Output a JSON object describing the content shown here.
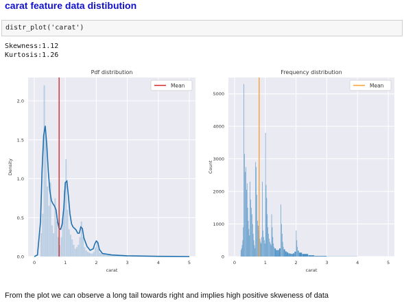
{
  "heading": "carat feature data distibution",
  "code": "distr_plot('carat')",
  "output": {
    "skewness": "Skewness:1.12",
    "kurtosis": "Kurtosis:1.26"
  },
  "conclusion": "From the plot we can observe a long tail towards right and implies high positive skweness of data",
  "chart_data": [
    {
      "type": "bar",
      "title": "Pdf distribution",
      "xlabel": "carat",
      "ylabel": "Density",
      "xlim": [
        -0.2,
        5.2
      ],
      "ylim": [
        0,
        2.3
      ],
      "xticks": [
        "0",
        "1",
        "2",
        "3",
        "4",
        "5"
      ],
      "yticks": [
        "0.0",
        "0.5",
        "1.0",
        "1.5",
        "2.0"
      ],
      "grid": true,
      "legend": "top-right",
      "legend_entries": [
        "Mean"
      ],
      "mean": 0.8,
      "mean_color": "#d62728",
      "bar_color": "#a8c4de",
      "kde_color": "#1f6fad",
      "bins": [
        [
          0.2,
          0.25,
          0.3
        ],
        [
          0.25,
          0.3,
          0.55
        ],
        [
          0.3,
          0.35,
          2.2
        ],
        [
          0.35,
          0.4,
          1.55
        ],
        [
          0.4,
          0.45,
          0.9
        ],
        [
          0.45,
          0.5,
          0.65
        ],
        [
          0.5,
          0.55,
          0.95
        ],
        [
          0.55,
          0.6,
          0.4
        ],
        [
          0.6,
          0.65,
          0.3
        ],
        [
          0.65,
          0.7,
          0.75
        ],
        [
          0.7,
          0.75,
          0.45
        ],
        [
          0.75,
          0.8,
          0.25
        ],
        [
          0.8,
          0.85,
          0.15
        ],
        [
          0.85,
          0.9,
          0.25
        ],
        [
          0.9,
          0.95,
          0.5
        ],
        [
          0.95,
          1.0,
          0.85
        ],
        [
          1.0,
          1.05,
          1.25
        ],
        [
          1.05,
          1.1,
          0.6
        ],
        [
          1.1,
          1.15,
          0.35
        ],
        [
          1.15,
          1.2,
          0.28
        ],
        [
          1.2,
          1.25,
          0.22
        ],
        [
          1.25,
          1.3,
          0.15
        ],
        [
          1.3,
          1.35,
          0.1
        ],
        [
          1.35,
          1.4,
          0.12
        ],
        [
          1.4,
          1.45,
          0.15
        ],
        [
          1.45,
          1.5,
          0.25
        ],
        [
          1.5,
          1.55,
          0.45
        ],
        [
          1.55,
          1.6,
          0.25
        ],
        [
          1.6,
          1.65,
          0.12
        ],
        [
          1.65,
          1.7,
          0.08
        ],
        [
          1.7,
          1.75,
          0.06
        ],
        [
          1.75,
          1.8,
          0.05
        ],
        [
          1.8,
          1.85,
          0.04
        ],
        [
          1.85,
          1.9,
          0.04
        ],
        [
          1.9,
          1.95,
          0.06
        ],
        [
          1.95,
          2.0,
          0.12
        ],
        [
          2.0,
          2.05,
          0.2
        ],
        [
          2.05,
          2.1,
          0.1
        ],
        [
          2.1,
          2.15,
          0.05
        ],
        [
          2.15,
          2.2,
          0.04
        ],
        [
          2.2,
          2.3,
          0.03
        ],
        [
          2.3,
          2.5,
          0.02
        ],
        [
          2.5,
          3.0,
          0.01
        ]
      ],
      "kde": [
        [
          0.0,
          0.0
        ],
        [
          0.1,
          0.02
        ],
        [
          0.2,
          0.45
        ],
        [
          0.25,
          1.1
        ],
        [
          0.3,
          1.55
        ],
        [
          0.35,
          1.68
        ],
        [
          0.4,
          1.45
        ],
        [
          0.45,
          1.1
        ],
        [
          0.5,
          0.85
        ],
        [
          0.55,
          0.72
        ],
        [
          0.6,
          0.68
        ],
        [
          0.65,
          0.65
        ],
        [
          0.7,
          0.6
        ],
        [
          0.75,
          0.45
        ],
        [
          0.8,
          0.36
        ],
        [
          0.85,
          0.35
        ],
        [
          0.9,
          0.42
        ],
        [
          0.95,
          0.62
        ],
        [
          1.0,
          0.95
        ],
        [
          1.05,
          0.97
        ],
        [
          1.1,
          0.78
        ],
        [
          1.15,
          0.55
        ],
        [
          1.2,
          0.42
        ],
        [
          1.25,
          0.38
        ],
        [
          1.3,
          0.36
        ],
        [
          1.35,
          0.34
        ],
        [
          1.4,
          0.3
        ],
        [
          1.45,
          0.3
        ],
        [
          1.5,
          0.38
        ],
        [
          1.55,
          0.36
        ],
        [
          1.6,
          0.24
        ],
        [
          1.7,
          0.13
        ],
        [
          1.8,
          0.08
        ],
        [
          1.9,
          0.1
        ],
        [
          1.95,
          0.16
        ],
        [
          2.0,
          0.2
        ],
        [
          2.05,
          0.18
        ],
        [
          2.1,
          0.09
        ],
        [
          2.2,
          0.04
        ],
        [
          2.5,
          0.02
        ],
        [
          3.0,
          0.01
        ],
        [
          4.0,
          0.003
        ],
        [
          5.0,
          0.0
        ]
      ]
    },
    {
      "type": "bar",
      "title": "Frequency distribution",
      "xlabel": "carat",
      "ylabel": "Count",
      "xlim": [
        -0.2,
        5.2
      ],
      "ylim": [
        0,
        5500
      ],
      "xticks": [
        "0",
        "1",
        "2",
        "3",
        "4",
        "5"
      ],
      "yticks": [
        "0",
        "1000",
        "2000",
        "3000",
        "4000",
        "5000"
      ],
      "grid": true,
      "legend": "top-right",
      "legend_entries": [
        "Mean"
      ],
      "mean": 0.8,
      "mean_color": "#ff9f2e",
      "bar_color": "#4a8fc4",
      "bins": [
        [
          0.2,
          0.22,
          200
        ],
        [
          0.22,
          0.24,
          250
        ],
        [
          0.24,
          0.26,
          350
        ],
        [
          0.26,
          0.28,
          500
        ],
        [
          0.28,
          0.3,
          900
        ],
        [
          0.3,
          0.32,
          5300
        ],
        [
          0.32,
          0.34,
          3150
        ],
        [
          0.34,
          0.36,
          2600
        ],
        [
          0.36,
          0.38,
          2750
        ],
        [
          0.38,
          0.4,
          2050
        ],
        [
          0.4,
          0.42,
          2250
        ],
        [
          0.42,
          0.44,
          1500
        ],
        [
          0.44,
          0.46,
          1100
        ],
        [
          0.46,
          0.48,
          850
        ],
        [
          0.48,
          0.5,
          650
        ],
        [
          0.5,
          0.52,
          2300
        ],
        [
          0.52,
          0.54,
          1750
        ],
        [
          0.54,
          0.56,
          1500
        ],
        [
          0.56,
          0.58,
          1300
        ],
        [
          0.58,
          0.6,
          1000
        ],
        [
          0.6,
          0.62,
          700
        ],
        [
          0.62,
          0.64,
          500
        ],
        [
          0.64,
          0.66,
          350
        ],
        [
          0.66,
          0.68,
          250
        ],
        [
          0.68,
          0.7,
          2900
        ],
        [
          0.7,
          0.72,
          2750
        ],
        [
          0.72,
          0.74,
          1900
        ],
        [
          0.74,
          0.76,
          1100
        ],
        [
          0.76,
          0.78,
          950
        ],
        [
          0.78,
          0.8,
          800
        ],
        [
          0.8,
          0.82,
          650
        ],
        [
          0.82,
          0.84,
          550
        ],
        [
          0.84,
          0.86,
          450
        ],
        [
          0.86,
          0.88,
          400
        ],
        [
          0.88,
          0.9,
          600
        ],
        [
          0.9,
          0.92,
          2300
        ],
        [
          0.92,
          0.94,
          800
        ],
        [
          0.94,
          0.96,
          600
        ],
        [
          0.96,
          0.98,
          500
        ],
        [
          0.98,
          1.0,
          400
        ],
        [
          1.0,
          1.02,
          3800
        ],
        [
          1.02,
          1.04,
          2200
        ],
        [
          1.04,
          1.06,
          1800
        ],
        [
          1.06,
          1.08,
          1300
        ],
        [
          1.08,
          1.1,
          900
        ],
        [
          1.1,
          1.12,
          700
        ],
        [
          1.12,
          1.14,
          550
        ],
        [
          1.14,
          1.16,
          450
        ],
        [
          1.16,
          1.18,
          400
        ],
        [
          1.18,
          1.2,
          350
        ],
        [
          1.2,
          1.22,
          1300
        ],
        [
          1.22,
          1.24,
          900
        ],
        [
          1.24,
          1.26,
          600
        ],
        [
          1.26,
          1.28,
          400
        ],
        [
          1.28,
          1.3,
          300
        ],
        [
          1.3,
          1.35,
          250
        ],
        [
          1.35,
          1.4,
          200
        ],
        [
          1.4,
          1.45,
          200
        ],
        [
          1.45,
          1.5,
          250
        ],
        [
          1.5,
          1.52,
          1600
        ],
        [
          1.52,
          1.54,
          1000
        ],
        [
          1.54,
          1.56,
          700
        ],
        [
          1.56,
          1.58,
          450
        ],
        [
          1.58,
          1.6,
          300
        ],
        [
          1.6,
          1.65,
          220
        ],
        [
          1.65,
          1.7,
          160
        ],
        [
          1.7,
          1.75,
          130
        ],
        [
          1.75,
          1.8,
          100
        ],
        [
          1.8,
          1.85,
          90
        ],
        [
          1.85,
          1.9,
          80
        ],
        [
          1.9,
          1.95,
          100
        ],
        [
          1.95,
          2.0,
          150
        ],
        [
          2.0,
          2.02,
          800
        ],
        [
          2.02,
          2.04,
          500
        ],
        [
          2.04,
          2.06,
          300
        ],
        [
          2.06,
          2.1,
          180
        ],
        [
          2.1,
          2.2,
          120
        ],
        [
          2.2,
          2.4,
          80
        ],
        [
          2.4,
          2.6,
          40
        ],
        [
          2.6,
          3.0,
          20
        ],
        [
          3.0,
          4.0,
          5
        ]
      ]
    }
  ]
}
